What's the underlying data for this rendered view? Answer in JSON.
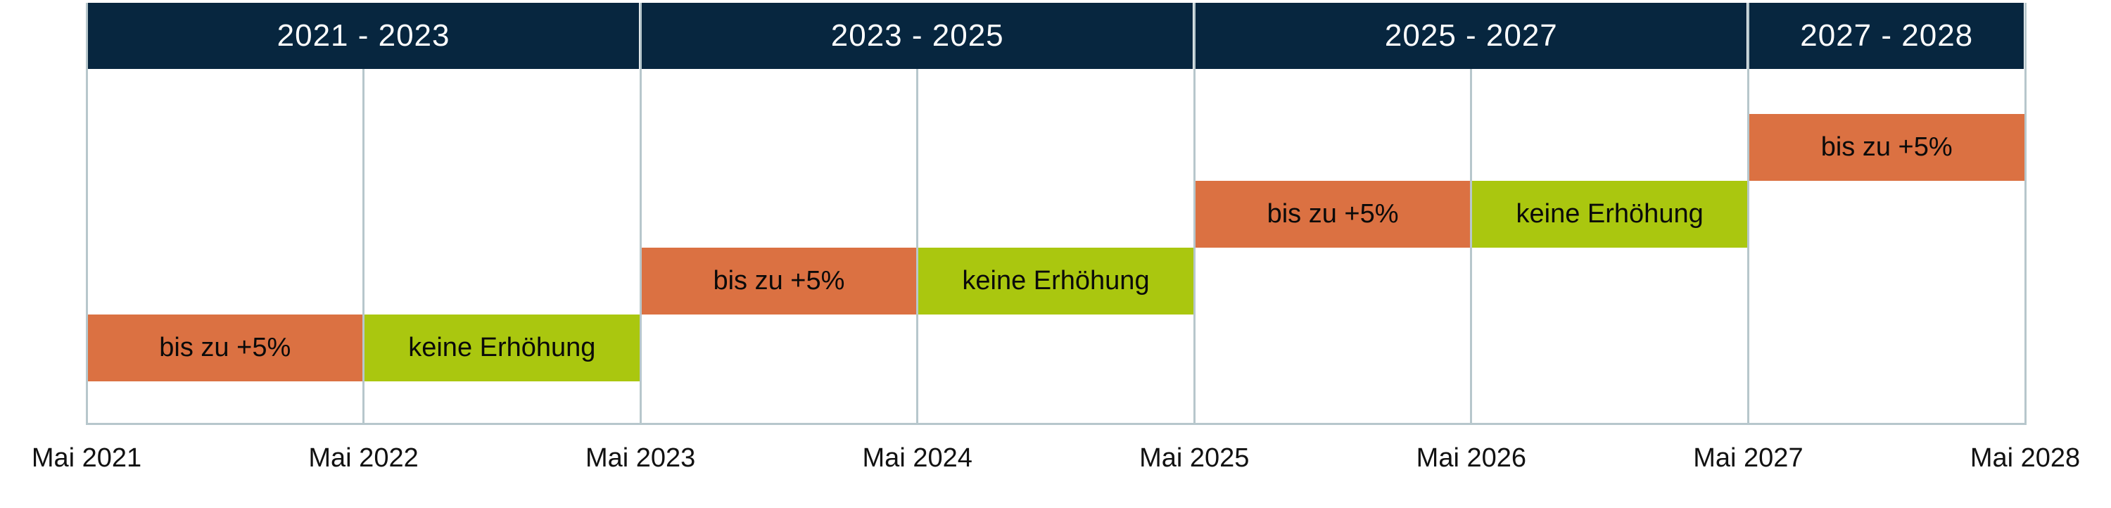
{
  "chart_data": {
    "type": "gantt",
    "title": "",
    "grid": true,
    "x_axis": {
      "unit": "year",
      "start": "Mai 2021",
      "end": "Mai 2028",
      "intervals": 7,
      "tick_labels": [
        "Mai 2021",
        "Mai 2022",
        "Mai 2023",
        "Mai 2024",
        "Mai 2025",
        "Mai 2026",
        "Mai 2027",
        "Mai 2028"
      ]
    },
    "period_headers": [
      {
        "label": "2021 - 2023",
        "start_tick": 0,
        "end_tick": 2
      },
      {
        "label": "2023 - 2025",
        "start_tick": 2,
        "end_tick": 4
      },
      {
        "label": "2025 - 2027",
        "start_tick": 4,
        "end_tick": 6
      },
      {
        "label": "2027 - 2028",
        "start_tick": 6,
        "end_tick": 7
      }
    ],
    "segments": [
      {
        "label": "bis zu +5%",
        "kind": "increase",
        "start": "Mai 2021",
        "end": "Mai 2022",
        "start_tick": 0,
        "end_tick": 1,
        "row": 0
      },
      {
        "label": "keine Erhöhung",
        "kind": "no_increase",
        "start": "Mai 2022",
        "end": "Mai 2023",
        "start_tick": 1,
        "end_tick": 2,
        "row": 0
      },
      {
        "label": "bis zu +5%",
        "kind": "increase",
        "start": "Mai 2023",
        "end": "Mai 2024",
        "start_tick": 2,
        "end_tick": 3,
        "row": 1
      },
      {
        "label": "keine Erhöhung",
        "kind": "no_increase",
        "start": "Mai 2024",
        "end": "Mai 2025",
        "start_tick": 3,
        "end_tick": 4,
        "row": 1
      },
      {
        "label": "bis zu +5%",
        "kind": "increase",
        "start": "Mai 2025",
        "end": "Mai 2026",
        "start_tick": 4,
        "end_tick": 5,
        "row": 2
      },
      {
        "label": "keine Erhöhung",
        "kind": "no_increase",
        "start": "Mai 2026",
        "end": "Mai 2027",
        "start_tick": 5,
        "end_tick": 6,
        "row": 2
      },
      {
        "label": "bis zu +5%",
        "kind": "increase",
        "start": "Mai 2027",
        "end": "Mai 2028",
        "start_tick": 6,
        "end_tick": 7,
        "row": 3
      }
    ],
    "colors": {
      "header_bg": "#07263F",
      "header_text": "#FFFFFF",
      "increase": "#DB7142",
      "no_increase": "#AAC70F",
      "grid": "#B7C7CC",
      "bar_text": "#0A0A0A",
      "axis_text": "#111111",
      "background": "#FFFFFF"
    }
  }
}
